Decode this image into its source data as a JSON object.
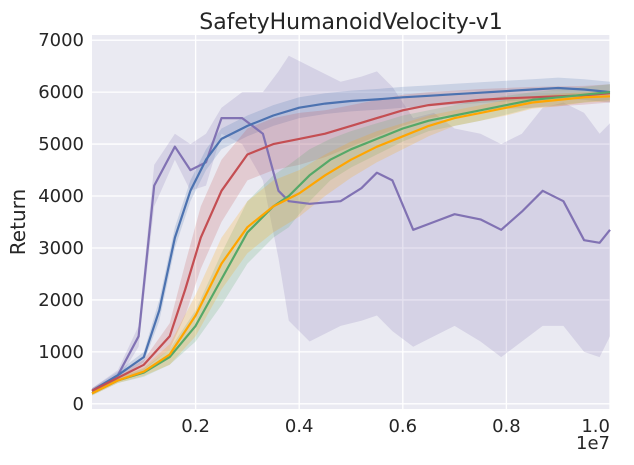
{
  "chart_data": {
    "type": "line",
    "title": "SafetyHumanoidVelocity-v1",
    "xlabel": "",
    "ylabel": "Return",
    "x_scale_label": "1e7",
    "xlim": [
      0.0,
      1.0
    ],
    "ylim": [
      -100,
      7100
    ],
    "x_ticks": [
      0.2,
      0.4,
      0.6,
      0.8,
      1.0
    ],
    "x_tick_labels": [
      "0.2",
      "0.4",
      "0.6",
      "0.8",
      "1.0"
    ],
    "y_ticks": [
      0,
      1000,
      2000,
      3000,
      4000,
      5000,
      6000,
      7000
    ],
    "y_tick_labels": [
      "0",
      "1000",
      "2000",
      "3000",
      "4000",
      "5000",
      "6000",
      "7000"
    ],
    "grid": true,
    "colors": {
      "background": "#eaeaf2",
      "grid": "#ffffff",
      "text": "#262626"
    },
    "series": [
      {
        "name": "purple",
        "color": "#8172b3",
        "x": [
          0.0,
          0.05,
          0.09,
          0.12,
          0.16,
          0.19,
          0.22,
          0.25,
          0.29,
          0.33,
          0.36,
          0.38,
          0.42,
          0.48,
          0.52,
          0.55,
          0.58,
          0.62,
          0.66,
          0.7,
          0.75,
          0.79,
          0.83,
          0.87,
          0.91,
          0.95,
          0.98,
          1.0
        ],
        "y": [
          250,
          550,
          1300,
          4200,
          4950,
          4500,
          4650,
          5500,
          5500,
          5200,
          4100,
          3900,
          3850,
          3900,
          4150,
          4450,
          4300,
          3350,
          3500,
          3650,
          3550,
          3350,
          3700,
          4100,
          3900,
          3150,
          3100,
          3350
        ],
        "upper": [
          300,
          650,
          1500,
          4600,
          5200,
          5000,
          5200,
          5700,
          6000,
          6000,
          6400,
          6700,
          6500,
          6200,
          6300,
          6400,
          6100,
          5500,
          5600,
          5300,
          5200,
          5000,
          5200,
          5700,
          5800,
          5600,
          5200,
          5400
        ],
        "lower": [
          200,
          450,
          1100,
          3800,
          4700,
          4100,
          4200,
          5200,
          5000,
          4300,
          2800,
          1600,
          1200,
          1500,
          1600,
          1700,
          1400,
          1100,
          1300,
          1500,
          1200,
          900,
          1200,
          1500,
          1500,
          1000,
          900,
          1300
        ]
      },
      {
        "name": "blue",
        "color": "#4c72b0",
        "x": [
          0.0,
          0.05,
          0.1,
          0.13,
          0.16,
          0.19,
          0.22,
          0.25,
          0.3,
          0.35,
          0.4,
          0.45,
          0.5,
          0.55,
          0.6,
          0.65,
          0.7,
          0.75,
          0.8,
          0.85,
          0.9,
          0.95,
          1.0
        ],
        "y": [
          250,
          550,
          900,
          1800,
          3200,
          4100,
          4700,
          5100,
          5350,
          5550,
          5700,
          5780,
          5830,
          5860,
          5900,
          5930,
          5960,
          5990,
          6020,
          6050,
          6080,
          6050,
          6000
        ],
        "upper": [
          300,
          620,
          1000,
          2000,
          3400,
          4300,
          4900,
          5300,
          5550,
          5750,
          5900,
          5980,
          6030,
          6060,
          6100,
          6130,
          6160,
          6190,
          6220,
          6250,
          6280,
          6250,
          6200
        ],
        "lower": [
          200,
          480,
          800,
          1600,
          3000,
          3900,
          4500,
          4900,
          5150,
          5350,
          5500,
          5580,
          5630,
          5660,
          5700,
          5730,
          5760,
          5790,
          5820,
          5850,
          5880,
          5850,
          5800
        ]
      },
      {
        "name": "red",
        "color": "#c44e52",
        "x": [
          0.0,
          0.05,
          0.1,
          0.15,
          0.18,
          0.21,
          0.25,
          0.3,
          0.35,
          0.4,
          0.45,
          0.5,
          0.55,
          0.6,
          0.65,
          0.7,
          0.75,
          0.8,
          0.85,
          0.9,
          0.95,
          1.0
        ],
        "y": [
          250,
          500,
          750,
          1300,
          2200,
          3200,
          4100,
          4800,
          5000,
          5100,
          5200,
          5350,
          5500,
          5650,
          5750,
          5800,
          5850,
          5880,
          5900,
          5920,
          5940,
          5980
        ],
        "upper": [
          300,
          560,
          850,
          1550,
          2700,
          3800,
          4700,
          5300,
          5500,
          5600,
          5650,
          5750,
          5850,
          5950,
          6000,
          6030,
          6060,
          6080,
          6100,
          6110,
          6120,
          6150
        ],
        "lower": [
          200,
          440,
          650,
          1050,
          1700,
          2600,
          3500,
          4300,
          4500,
          4600,
          4750,
          4950,
          5150,
          5350,
          5500,
          5570,
          5640,
          5680,
          5700,
          5730,
          5760,
          5800
        ]
      },
      {
        "name": "green",
        "color": "#55a868",
        "x": [
          0.0,
          0.05,
          0.1,
          0.15,
          0.2,
          0.25,
          0.3,
          0.35,
          0.38,
          0.42,
          0.46,
          0.5,
          0.55,
          0.6,
          0.65,
          0.7,
          0.75,
          0.8,
          0.85,
          0.9,
          0.95,
          1.0
        ],
        "y": [
          200,
          450,
          600,
          900,
          1500,
          2400,
          3300,
          3800,
          4000,
          4400,
          4700,
          4900,
          5100,
          5300,
          5450,
          5550,
          5650,
          5750,
          5850,
          5900,
          5950,
          6000
        ],
        "upper": [
          240,
          500,
          680,
          1050,
          1800,
          2900,
          3900,
          4400,
          4600,
          4900,
          5100,
          5250,
          5400,
          5550,
          5650,
          5750,
          5850,
          5930,
          6000,
          6050,
          6100,
          6150
        ],
        "lower": [
          160,
          400,
          520,
          750,
          1200,
          1900,
          2700,
          3200,
          3400,
          3900,
          4300,
          4550,
          4800,
          5050,
          5250,
          5350,
          5450,
          5570,
          5700,
          5750,
          5800,
          5850
        ]
      },
      {
        "name": "orange",
        "color": "#ffa500",
        "x": [
          0.0,
          0.05,
          0.1,
          0.15,
          0.2,
          0.25,
          0.3,
          0.35,
          0.4,
          0.45,
          0.5,
          0.55,
          0.6,
          0.65,
          0.7,
          0.75,
          0.8,
          0.85,
          0.9,
          0.95,
          1.0
        ],
        "y": [
          200,
          450,
          620,
          950,
          1700,
          2700,
          3400,
          3800,
          4050,
          4400,
          4700,
          4950,
          5150,
          5350,
          5500,
          5600,
          5700,
          5800,
          5850,
          5900,
          5920
        ],
        "upper": [
          240,
          500,
          700,
          1150,
          2100,
          3200,
          3900,
          4300,
          4500,
          4800,
          5050,
          5250,
          5400,
          5550,
          5650,
          5750,
          5850,
          5920,
          5970,
          6000,
          6020
        ],
        "lower": [
          160,
          400,
          540,
          750,
          1300,
          2200,
          2900,
          3300,
          3600,
          4000,
          4350,
          4650,
          4900,
          5150,
          5350,
          5450,
          5550,
          5680,
          5730,
          5800,
          5820
        ]
      }
    ]
  }
}
